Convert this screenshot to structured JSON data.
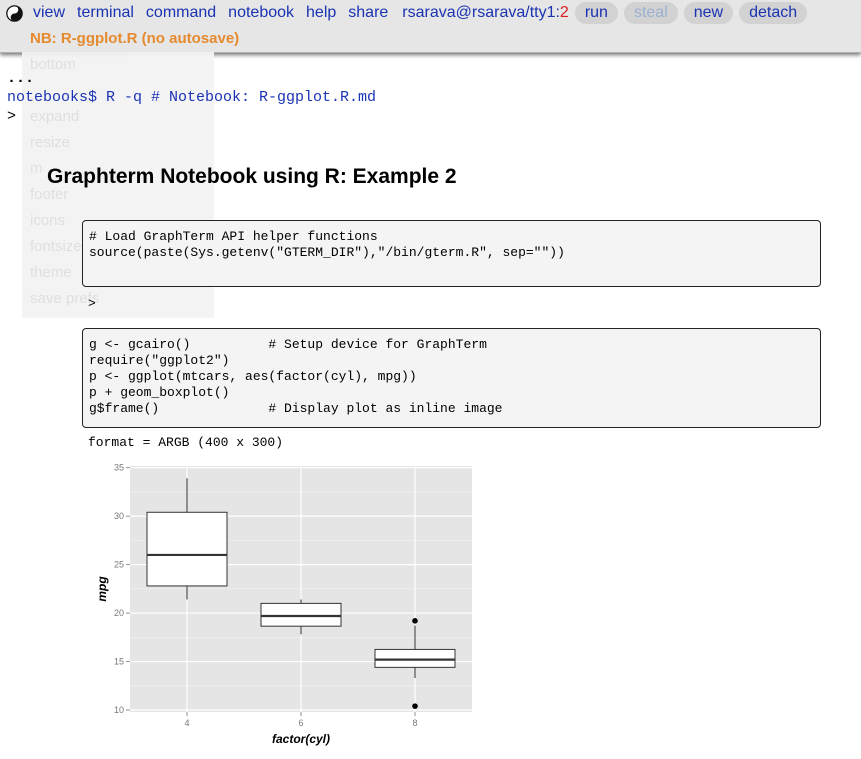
{
  "menu": {
    "items": [
      "view",
      "terminal",
      "command",
      "notebook",
      "help",
      "share"
    ],
    "user": "rsarava@rsarava/tty1:",
    "user_num": "2",
    "buttons": [
      "run",
      "steal",
      "new",
      "detach"
    ]
  },
  "notebook_title": "NB: R-ggplot.R (no autosave)",
  "ghost_menu": [
    "bottom",
    "",
    "expand",
    "resize",
    "m",
    "footer",
    "icons",
    "fontsize",
    "theme",
    "save prefs"
  ],
  "terminal": {
    "dots": "...",
    "command_line": "notebooks$ R -q  # Notebook: R-ggplot.R.md",
    "prompt": ">"
  },
  "heading": "Graphterm Notebook using R: Example 2",
  "cells": [
    {
      "code": "# Load GraphTerm API helper functions\nsource(paste(Sys.getenv(\"GTERM_DIR\"),\"/bin/gterm.R\", sep=\"\"))\n "
    },
    {
      "code": "g <- gcairo()          # Setup device for GraphTerm\nrequire(\"ggplot2\")\np <- ggplot(mtcars, aes(factor(cyl), mpg))\np + geom_boxplot()\ng$frame()              # Display plot as inline image"
    }
  ],
  "cell1_output": ">",
  "cell2_output": "format = ARGB (400 x 300)",
  "chart_data": {
    "type": "box",
    "xlabel": "factor(cyl)",
    "ylabel": "mpg",
    "categories": [
      "4",
      "6",
      "8"
    ],
    "ylim": [
      10,
      35
    ],
    "yticks": [
      10,
      15,
      20,
      25,
      30,
      35
    ],
    "boxes": [
      {
        "cat": "4",
        "min": 21.4,
        "q1": 22.8,
        "median": 26.0,
        "q3": 30.4,
        "max": 33.9,
        "outliers": []
      },
      {
        "cat": "6",
        "min": 17.8,
        "q1": 18.65,
        "median": 19.7,
        "q3": 21.0,
        "max": 21.4,
        "outliers": []
      },
      {
        "cat": "8",
        "min": 13.3,
        "q1": 14.4,
        "median": 15.2,
        "q3": 16.25,
        "max": 18.7,
        "outliers": [
          10.4,
          19.2
        ]
      }
    ]
  }
}
